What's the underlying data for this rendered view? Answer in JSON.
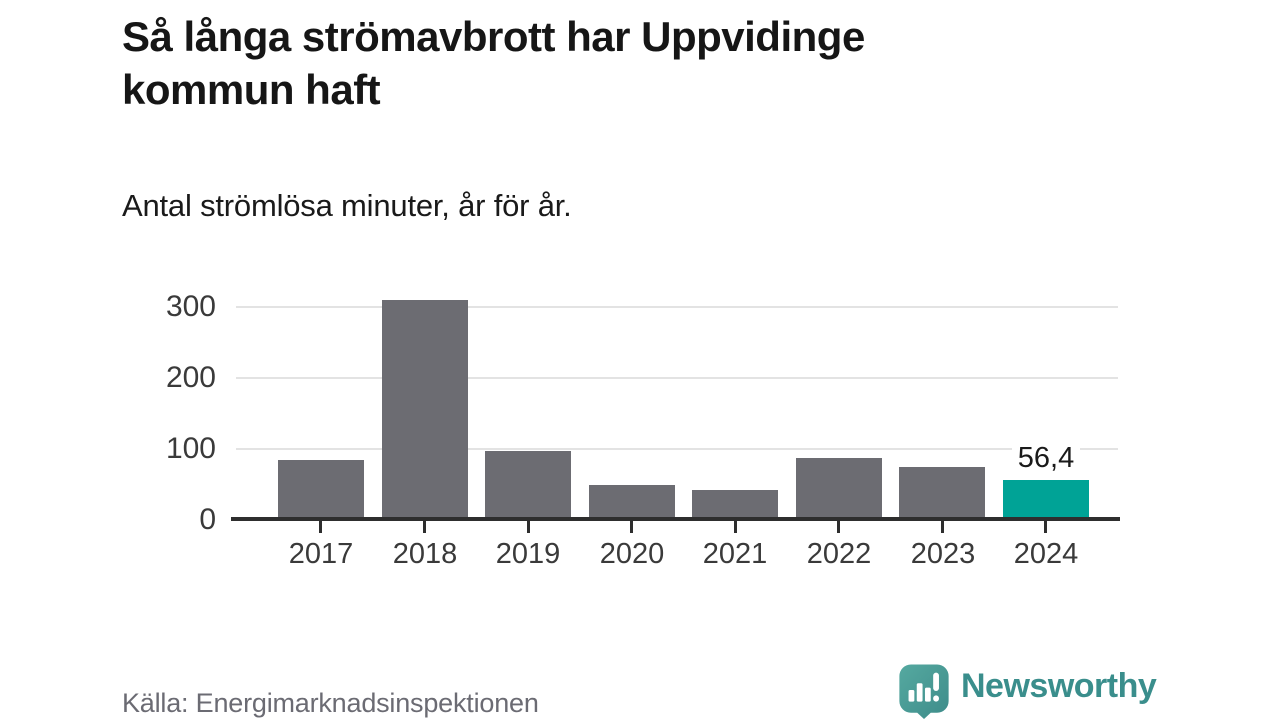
{
  "header": {
    "title_lines": [
      "Så långa strömavbrott har Uppvidinge",
      "kommun haft"
    ],
    "subtitle": "Antal strömlösa minuter, år för år."
  },
  "footer": {
    "source": "Källa: Energimarknadsinspektionen",
    "logo_text": "Newsworthy"
  },
  "colors": {
    "bar": "#6c6c72",
    "highlight": "#00a396",
    "axis": "#2e2e2e",
    "grid": "#e3e3e3",
    "axis_label": "#3a3a3a",
    "text": "#161616",
    "muted": "#6b6b73",
    "logo": "#3a8e8c"
  },
  "chart_data": {
    "type": "bar",
    "title": "Så långa strömavbrott har Uppvidinge kommun haft",
    "subtitle": "Antal strömlösa minuter, år för år.",
    "source": "Källa: Energimarknadsinspektionen",
    "categories": [
      "2017",
      "2018",
      "2019",
      "2020",
      "2021",
      "2022",
      "2023",
      "2024"
    ],
    "values": [
      85,
      311,
      97,
      50,
      42,
      87,
      75,
      56.4
    ],
    "value_labels": [
      "",
      "",
      "",
      "",
      "",
      "",
      "",
      "56,4"
    ],
    "highlight_index": 7,
    "yticks": [
      0,
      100,
      200,
      300
    ],
    "ylim": [
      0,
      330
    ],
    "grid": true,
    "xlabel": "",
    "ylabel": "",
    "legend": "none"
  }
}
